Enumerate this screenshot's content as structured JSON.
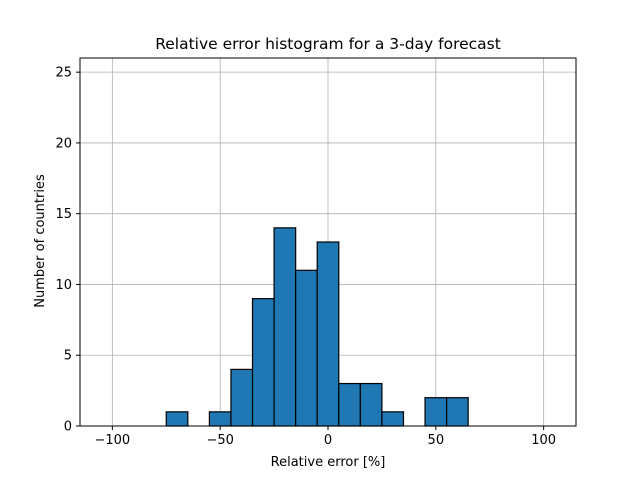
{
  "chart_data": {
    "type": "bar",
    "title": "Relative error histogram for a 3-day forecast",
    "xlabel": "Relative error [%]",
    "ylabel": "Number of countries",
    "xlim": [
      -115,
      115
    ],
    "ylim": [
      0,
      26
    ],
    "xticks": [
      -100,
      -50,
      0,
      50,
      100
    ],
    "xtick_labels": [
      "−100",
      "−50",
      "0",
      "50",
      "100"
    ],
    "yticks": [
      0,
      5,
      10,
      15,
      20,
      25
    ],
    "grid": true,
    "bin_width": 10,
    "bins": [
      {
        "x0": -105,
        "x1": -95,
        "count": 0
      },
      {
        "x0": -95,
        "x1": -85,
        "count": 0
      },
      {
        "x0": -85,
        "x1": -75,
        "count": 0
      },
      {
        "x0": -75,
        "x1": -65,
        "count": 1
      },
      {
        "x0": -65,
        "x1": -55,
        "count": 0
      },
      {
        "x0": -55,
        "x1": -45,
        "count": 1
      },
      {
        "x0": -45,
        "x1": -35,
        "count": 4
      },
      {
        "x0": -35,
        "x1": -25,
        "count": 9
      },
      {
        "x0": -25,
        "x1": -15,
        "count": 14
      },
      {
        "x0": -15,
        "x1": -5,
        "count": 11
      },
      {
        "x0": -5,
        "x1": 5,
        "count": 13
      },
      {
        "x0": 5,
        "x1": 15,
        "count": 3
      },
      {
        "x0": 15,
        "x1": 25,
        "count": 3
      },
      {
        "x0": 25,
        "x1": 35,
        "count": 1
      },
      {
        "x0": 35,
        "x1": 45,
        "count": 0
      },
      {
        "x0": 45,
        "x1": 55,
        "count": 2
      },
      {
        "x0": 55,
        "x1": 65,
        "count": 2
      },
      {
        "x0": 65,
        "x1": 75,
        "count": 0
      },
      {
        "x0": 75,
        "x1": 85,
        "count": 0
      },
      {
        "x0": 85,
        "x1": 95,
        "count": 0
      },
      {
        "x0": 95,
        "x1": 105,
        "count": 0
      }
    ],
    "bar_color": "#1f77b4",
    "edge_color": "#000000",
    "grid_color": "#b0b0b0"
  }
}
